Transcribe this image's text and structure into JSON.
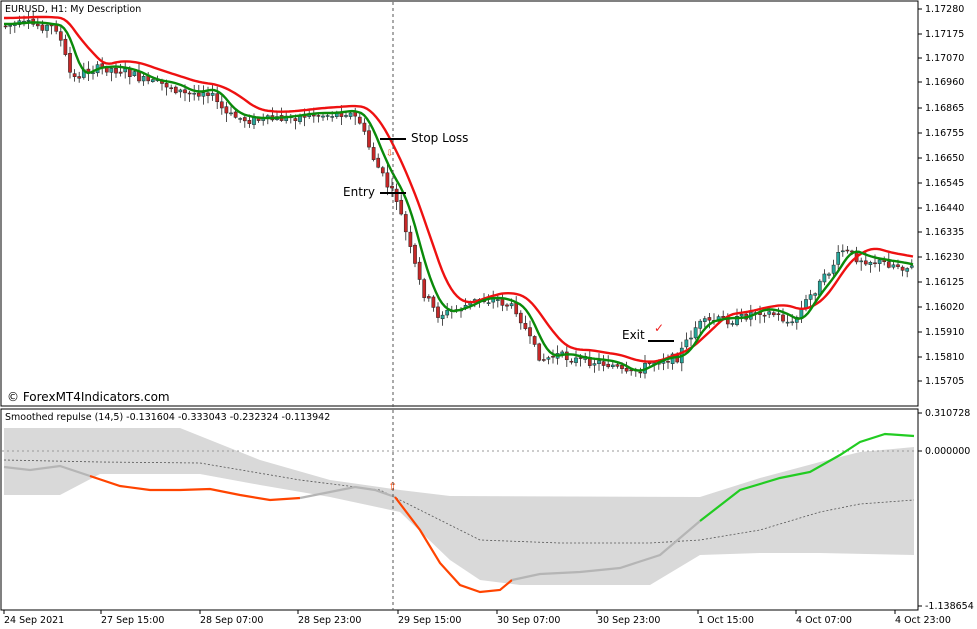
{
  "main_chart": {
    "symbol_header": "EURUSD, H1:  My Description",
    "watermark": "© ForexMT4Indicators.com",
    "price_axis": [
      "1.17280",
      "1.17175",
      "1.17070",
      "1.16960",
      "1.16865",
      "1.16755",
      "1.16650",
      "1.16545",
      "1.16440",
      "1.16335",
      "1.16230",
      "1.16125",
      "1.16020",
      "1.15910",
      "1.15810",
      "1.15705"
    ],
    "annotations": {
      "stop_loss": "Stop Loss",
      "entry": "Entry",
      "exit": "Exit",
      "exit_mark": "✓"
    },
    "colors": {
      "bull": "#26a69a",
      "bear": "#c62828",
      "fast_ma": "#0a8a0a",
      "slow_ma": "#ee1111"
    }
  },
  "indicator": {
    "header": "Smoothed repulse (14,5) -0.131604 -0.333043 -0.232324 -0.113942",
    "axis": [
      "0.310728",
      "0.000000",
      "-1.138654"
    ],
    "colors": {
      "band": "#d9d9d9",
      "rising": "#22cc22",
      "falling": "#ff4400",
      "neutral": "#b5b5b5"
    }
  },
  "time_axis": [
    "24 Sep 2021",
    "27 Sep 15:00",
    "28 Sep 07:00",
    "28 Sep 23:00",
    "29 Sep 15:00",
    "30 Sep 07:00",
    "30 Sep 23:00",
    "1 Oct 15:00",
    "4 Oct 07:00",
    "4 Oct 23:00"
  ]
}
